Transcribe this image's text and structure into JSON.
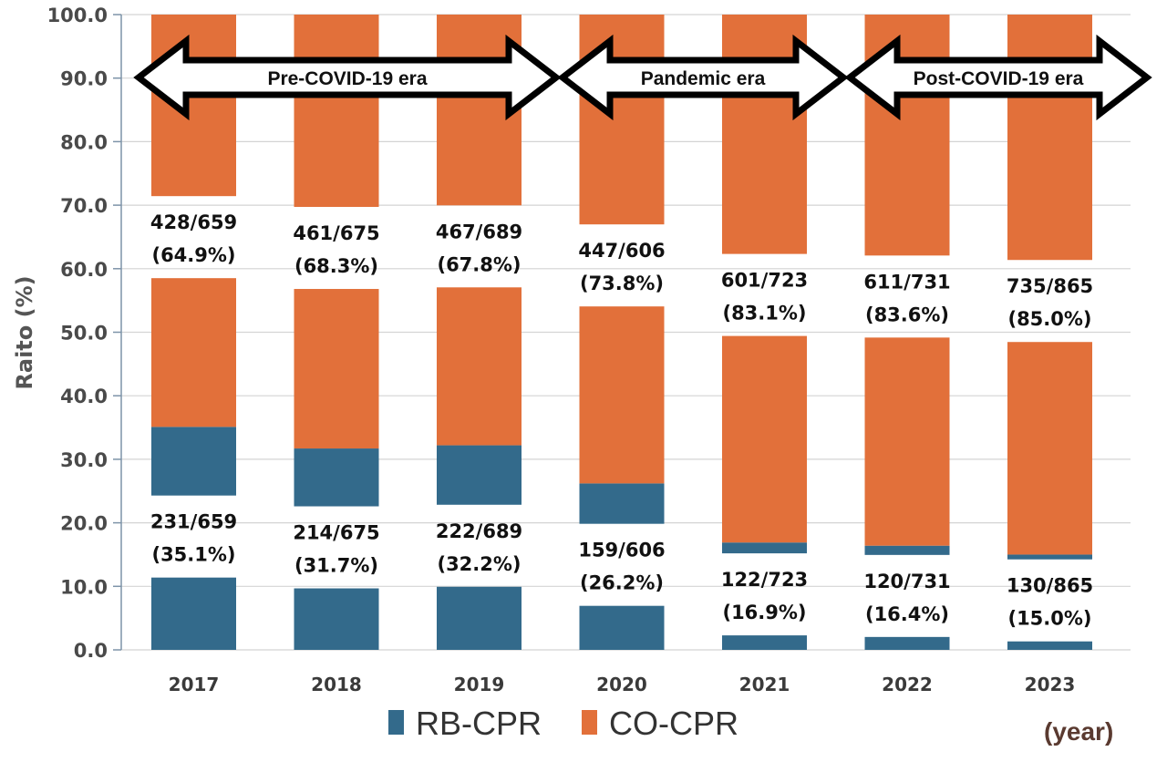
{
  "chart_data": {
    "type": "bar",
    "stacked": true,
    "title": "",
    "xlabel": "(year)",
    "ylabel": "Raito (%)",
    "ylim": [
      0,
      100
    ],
    "yticks": [
      "0.0",
      "10.0",
      "20.0",
      "30.0",
      "40.0",
      "50.0",
      "60.0",
      "70.0",
      "80.0",
      "90.0",
      "100.0"
    ],
    "grid": true,
    "categories": [
      "2017",
      "2018",
      "2019",
      "2020",
      "2021",
      "2022",
      "2023"
    ],
    "series": [
      {
        "name": "RB-CPR",
        "color": "#336a8b",
        "values": [
          35.1,
          31.7,
          32.2,
          26.2,
          16.9,
          16.4,
          15.0
        ],
        "labels": [
          [
            "231/659",
            "(35.1%)"
          ],
          [
            "214/675",
            "(31.7%)"
          ],
          [
            "222/689",
            "(32.2%)"
          ],
          [
            "159/606",
            "(26.2%)"
          ],
          [
            "122/723",
            "(16.9%)"
          ],
          [
            "120/731",
            "(16.4%)"
          ],
          [
            "130/865",
            "(15.0%)"
          ]
        ]
      },
      {
        "name": "CO-CPR",
        "color": "#e2703a",
        "values": [
          64.9,
          68.3,
          67.8,
          73.8,
          83.1,
          83.6,
          85.0
        ],
        "labels": [
          [
            "428/659",
            "(64.9%)"
          ],
          [
            "461/675",
            "(68.3%)"
          ],
          [
            "467/689",
            "(67.8%)"
          ],
          [
            "447/606",
            "(73.8%)"
          ],
          [
            "601/723",
            "(83.1%)"
          ],
          [
            "611/731",
            "(83.6%)"
          ],
          [
            "735/865",
            "(85.0%)"
          ]
        ]
      }
    ],
    "annotations": [
      {
        "label": "Pre-COVID-19 era",
        "from": "2017",
        "to": "2019"
      },
      {
        "label": "Pandemic era",
        "from": "2020",
        "to": "2021"
      },
      {
        "label": "Post-COVID-19 era",
        "from": "2022",
        "to": "2023"
      }
    ],
    "legend": {
      "position": "bottom",
      "items": [
        "RB-CPR",
        "CO-CPR"
      ]
    }
  }
}
